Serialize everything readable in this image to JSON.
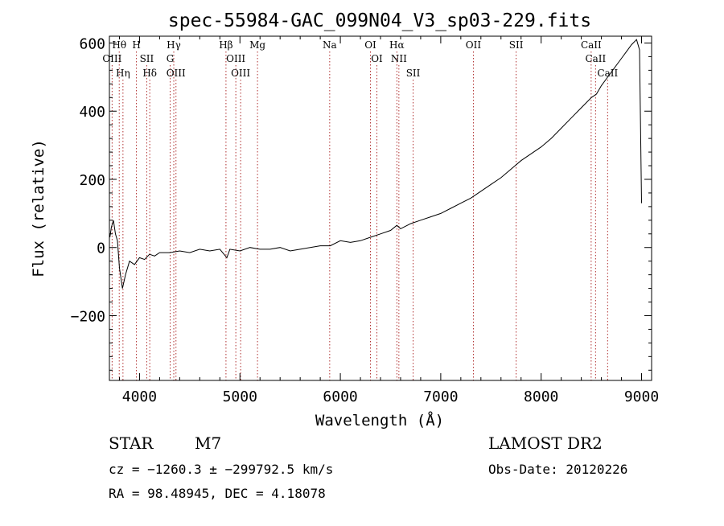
{
  "chart_data": {
    "type": "line",
    "title": "spec-55984-GAC_099N04_V3_sp03-229.fits",
    "xlabel": "Wavelength (Å)",
    "ylabel": "Flux (relative)",
    "xlim": [
      3700,
      9100
    ],
    "ylim": [
      -390,
      620
    ],
    "xticks": [
      4000,
      5000,
      6000,
      7000,
      8000,
      9000
    ],
    "yticks": [
      -200,
      0,
      200,
      400,
      600
    ],
    "ytick_labels": [
      "−200",
      "0",
      "200",
      "400",
      "600"
    ],
    "grid": false,
    "line_color": "#000000",
    "marker_line_color": "#b03030",
    "series": [
      {
        "x": [
          3705,
          3720,
          3740,
          3760,
          3780,
          3800,
          3830,
          3860,
          3900,
          3950,
          4000,
          4050,
          4100,
          4150,
          4200,
          4300,
          4400,
          4500,
          4600,
          4700,
          4800,
          4870,
          4900,
          5000,
          5100,
          5200,
          5300,
          5400,
          5500,
          5600,
          5700,
          5800,
          5900,
          6000,
          6100,
          6200,
          6300,
          6400,
          6500,
          6563,
          6600,
          6700,
          6800,
          6900,
          7000,
          7100,
          7200,
          7300,
          7400,
          7500,
          7600,
          7700,
          7800,
          7900,
          8000,
          8100,
          8200,
          8300,
          8400,
          8500,
          8550,
          8600,
          8650,
          8700,
          8750,
          8800,
          8850,
          8900,
          8950,
          8980,
          9000
        ],
        "y": [
          30,
          60,
          80,
          40,
          20,
          -60,
          -120,
          -80,
          -40,
          -50,
          -30,
          -35,
          -20,
          -25,
          -15,
          -15,
          -10,
          -15,
          -5,
          -10,
          -5,
          -30,
          -5,
          -10,
          0,
          -5,
          -5,
          0,
          -10,
          -5,
          0,
          5,
          5,
          20,
          15,
          20,
          30,
          40,
          50,
          65,
          55,
          70,
          80,
          90,
          100,
          115,
          130,
          145,
          165,
          185,
          205,
          230,
          255,
          275,
          295,
          320,
          350,
          380,
          410,
          440,
          450,
          475,
          495,
          515,
          535,
          555,
          575,
          595,
          610,
          580,
          130
        ]
      }
    ],
    "line_markers": [
      {
        "label": "Hθ",
        "x": 3798
      },
      {
        "label": "OIII",
        "x": 3727
      },
      {
        "label": "Hη",
        "x": 3835
      },
      {
        "label": "H",
        "x": 3969
      },
      {
        "label": "SII",
        "x": 4072
      },
      {
        "label": "Hδ",
        "x": 4102
      },
      {
        "label": "Hγ",
        "x": 4341
      },
      {
        "label": "G",
        "x": 4305
      },
      {
        "label": "OIII",
        "x": 4363
      },
      {
        "label": "Hβ",
        "x": 4861
      },
      {
        "label": "OIII",
        "x": 4959
      },
      {
        "label": "OIII",
        "x": 5007
      },
      {
        "label": "Mg",
        "x": 5175
      },
      {
        "label": "Na",
        "x": 5894
      },
      {
        "label": "OI",
        "x": 6300
      },
      {
        "label": "OI",
        "x": 6364
      },
      {
        "label": "Hα",
        "x": 6563
      },
      {
        "label": "NII",
        "x": 6583
      },
      {
        "label": "SII",
        "x": 6725
      },
      {
        "label": "OII",
        "x": 7325
      },
      {
        "label": "SII",
        "x": 7751
      },
      {
        "label": "CaII",
        "x": 8498
      },
      {
        "label": "CaII",
        "x": 8542
      },
      {
        "label": "CaII",
        "x": 8662
      }
    ]
  },
  "info": {
    "object_class": "STAR",
    "subclass": "M7",
    "survey": "LAMOST DR2",
    "cz_line": "cz = −1260.3 ± −299792.5 km/s",
    "obs_date": "Obs-Date: 20120226",
    "coords_line": "RA =  98.48945, DEC =   4.18078"
  }
}
